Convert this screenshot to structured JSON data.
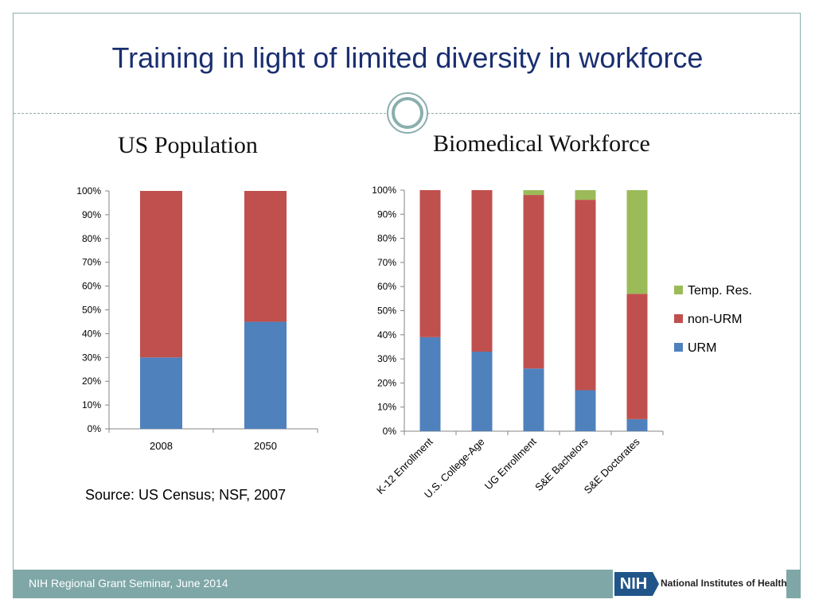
{
  "slide": {
    "title": "Training in light of limited diversity in workforce",
    "source": "Source: US Census; NSF, 2007",
    "footer": "NIH Regional Grant Seminar, June 2014",
    "logo_text": "NIH",
    "logo_name": "National Institutes of Health"
  },
  "colors": {
    "urm": "#4f81bd",
    "non_urm": "#c0504d",
    "temp_res": "#9bbb59",
    "accent": "#7fa7a7",
    "title": "#1a2f6f"
  },
  "chart_data": [
    {
      "type": "bar",
      "stacked": true,
      "title": "US Population",
      "categories": [
        "2008",
        "2050"
      ],
      "series": [
        {
          "name": "URM",
          "values": [
            30,
            45
          ]
        },
        {
          "name": "non-URM",
          "values": [
            70,
            55
          ]
        }
      ],
      "ylim": [
        0,
        100
      ],
      "yticks": [
        "0%",
        "10%",
        "20%",
        "30%",
        "40%",
        "50%",
        "60%",
        "70%",
        "80%",
        "90%",
        "100%"
      ],
      "legend": "none"
    },
    {
      "type": "bar",
      "stacked": true,
      "title": "Biomedical Workforce",
      "categories": [
        "K-12 Enrollment",
        "U.S. College-Age",
        "UG Enrollment",
        "S&E Bachelors",
        "S&E Doctorates"
      ],
      "series": [
        {
          "name": "URM",
          "values": [
            39,
            33,
            26,
            17,
            5
          ]
        },
        {
          "name": "non-URM",
          "values": [
            61,
            67,
            72,
            79,
            52
          ]
        },
        {
          "name": "Temp. Res.",
          "values": [
            0,
            0,
            2,
            4,
            43
          ]
        }
      ],
      "ylim": [
        0,
        100
      ],
      "yticks": [
        "0%",
        "10%",
        "20%",
        "30%",
        "40%",
        "50%",
        "60%",
        "70%",
        "80%",
        "90%",
        "100%"
      ],
      "legend": "right",
      "legend_order": [
        "Temp. Res.",
        "non-URM",
        "URM"
      ]
    }
  ]
}
